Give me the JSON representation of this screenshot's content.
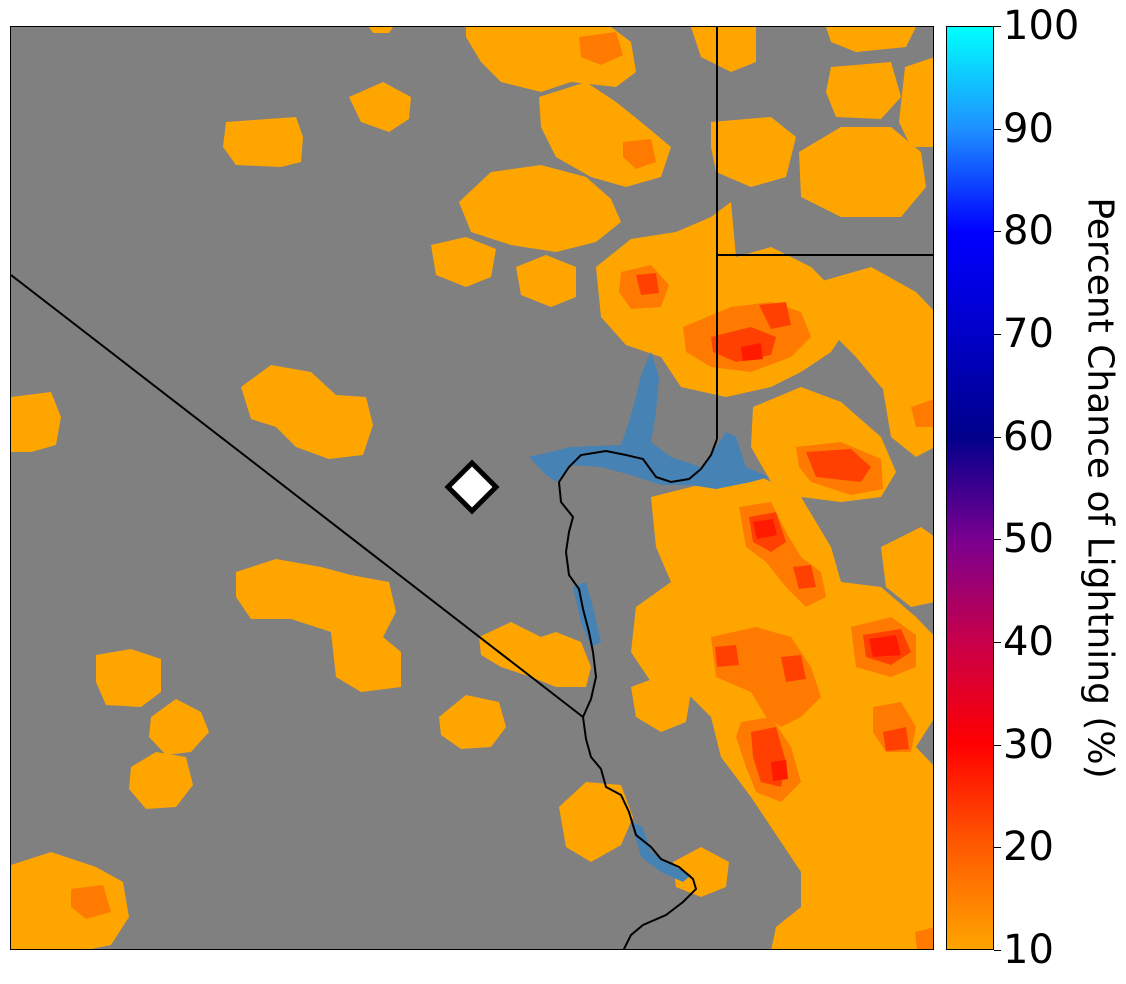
{
  "map": {
    "background_color": "#808080",
    "lightning_colors": {
      "low": "#ffa500",
      "mid": "#ff7a00",
      "high": "#ff4000",
      "peak": "#ff1a00"
    },
    "water_color": "#4682b4",
    "boundary_color": "#000000",
    "marker": {
      "shape": "diamond",
      "fill": "#ffffff",
      "stroke": "#000000"
    }
  },
  "colorbar": {
    "title": "Percent Chance of Lightning (%)",
    "min": 10,
    "max": 100,
    "ticks": [
      "10",
      "20",
      "30",
      "40",
      "50",
      "60",
      "70",
      "80",
      "90",
      "100"
    ],
    "gradient": [
      {
        "value": 10,
        "color": "#ffa500"
      },
      {
        "value": 20,
        "color": "#ff5a00"
      },
      {
        "value": 30,
        "color": "#ff0000"
      },
      {
        "value": 40,
        "color": "#c8004a"
      },
      {
        "value": 50,
        "color": "#7a0090"
      },
      {
        "value": 60,
        "color": "#00008b"
      },
      {
        "value": 70,
        "color": "#0000c8"
      },
      {
        "value": 80,
        "color": "#0000ff"
      },
      {
        "value": 90,
        "color": "#1e90ff"
      },
      {
        "value": 100,
        "color": "#00ffff"
      }
    ]
  }
}
